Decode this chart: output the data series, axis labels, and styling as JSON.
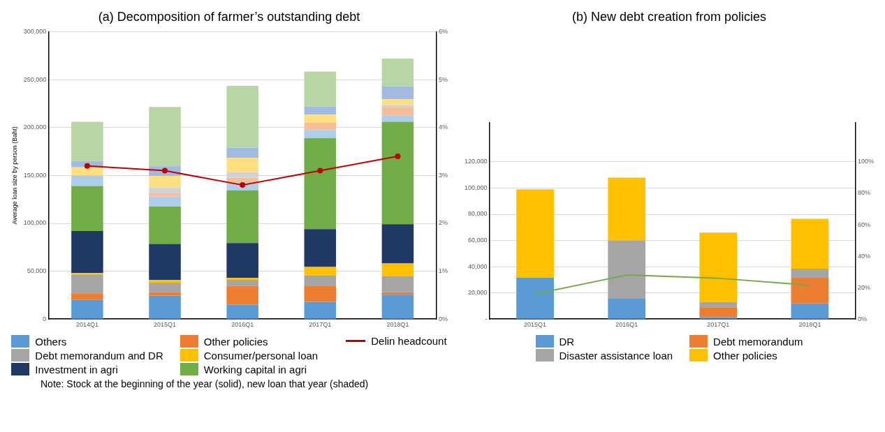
{
  "chart_data": [
    {
      "type": "bar",
      "title": "(a) Decomposition of farmer’s outstanding debt",
      "ylabel": "Average loan size by person (Baht)",
      "categories": [
        "2014Q1",
        "2015Q1",
        "2016Q1",
        "2017Q1",
        "2018Q1"
      ],
      "stacked": true,
      "grid": "y",
      "legend": "bottom",
      "ylim": [
        0,
        300000
      ],
      "yticks": [
        {
          "value": 0,
          "label": "0"
        },
        {
          "value": 50000,
          "label": "50,000"
        },
        {
          "value": 100000,
          "label": "100,000"
        },
        {
          "value": 150000,
          "label": "150,000"
        },
        {
          "value": 200000,
          "label": "200,000"
        },
        {
          "value": 250000,
          "label": "250,000"
        },
        {
          "value": 300000,
          "label": "300,000"
        }
      ],
      "y2lim": [
        0,
        6
      ],
      "y2ticks": [
        {
          "value": 0,
          "label": "0%"
        },
        {
          "value": 1,
          "label": "1%"
        },
        {
          "value": 2,
          "label": "2%"
        },
        {
          "value": 3,
          "label": "3%"
        },
        {
          "value": 4,
          "label": "4%"
        },
        {
          "value": 5,
          "label": "5%"
        },
        {
          "value": 6,
          "label": "6%"
        }
      ],
      "annotations": [
        "Note: Stock at the beginning of the year (solid), new loan that year (shaded)"
      ],
      "series": [
        {
          "name": "Others",
          "color": "#5b9bd5",
          "values": [
            20000,
            24500,
            15000,
            18000,
            25500
          ]
        },
        {
          "name": "Other policies",
          "color": "#ed7d31",
          "values": [
            7000,
            3500,
            19500,
            17000,
            2500
          ]
        },
        {
          "name": "Debt memorandum and DR",
          "color": "#a5a5a5",
          "values": [
            19000,
            10000,
            6500,
            10500,
            17000
          ]
        },
        {
          "name": "Consumer/personal loan",
          "color": "#ffc000",
          "values": [
            2000,
            3000,
            2000,
            9000,
            13000
          ]
        },
        {
          "name": "Investment in agri",
          "color": "#1f3864",
          "values": [
            44000,
            37500,
            36500,
            39500,
            41000
          ]
        },
        {
          "name": "Working capital in agri",
          "color": "#70ad47",
          "values": [
            47000,
            39000,
            55000,
            95000,
            107000
          ]
        },
        {
          "color": "#adcdea",
          "values": [
            11000,
            10500,
            8500,
            8500,
            6500
          ]
        },
        {
          "color": "#f6be98",
          "values": [
            0,
            3500,
            4500,
            7500,
            9000
          ]
        },
        {
          "color": "#d2d2d2",
          "values": [
            0,
            6000,
            6000,
            0,
            2000
          ]
        },
        {
          "color": "#ffe080",
          "values": [
            8500,
            12000,
            15000,
            8500,
            6000
          ]
        },
        {
          "color": "#a2b9e2",
          "values": [
            6500,
            10000,
            10500,
            8500,
            13500
          ]
        },
        {
          "color": "#b8d6a3",
          "values": [
            41000,
            62000,
            64500,
            36500,
            29000
          ]
        },
        {
          "name": "Delin headcount",
          "type": "line",
          "axis": "y2",
          "color": "#c00000",
          "marker": "circle",
          "values": [
            3.2,
            3.1,
            2.8,
            3.1,
            3.4
          ]
        }
      ]
    },
    {
      "type": "bar",
      "title": "(b) New debt creation from policies",
      "categories": [
        "2015Q1",
        "2016Q1",
        "2017Q1",
        "2018Q1"
      ],
      "stacked": true,
      "grid": "y",
      "legend": "bottom",
      "ylim": [
        0,
        150000
      ],
      "yticks": [
        {
          "value": 0,
          "label": "-"
        },
        {
          "value": 20000,
          "label": "20,000"
        },
        {
          "value": 40000,
          "label": "40,000"
        },
        {
          "value": 60000,
          "label": "60,000"
        },
        {
          "value": 80000,
          "label": "80,000"
        },
        {
          "value": 100000,
          "label": "100,000"
        },
        {
          "value": 120000,
          "label": "120,000"
        }
      ],
      "y2lim": [
        0,
        125
      ],
      "y2ticks": [
        {
          "value": 0,
          "label": "0%"
        },
        {
          "value": 20,
          "label": "20%"
        },
        {
          "value": 40,
          "label": "40%"
        },
        {
          "value": 60,
          "label": "60%"
        },
        {
          "value": 80,
          "label": "80%"
        },
        {
          "value": 100,
          "label": "100%"
        }
      ],
      "series": [
        {
          "name": "DR",
          "color": "#5b9bd5",
          "values": [
            31500,
            15500,
            1500,
            12000
          ]
        },
        {
          "name": "Debt memorandum",
          "color": "#ed7d31",
          "values": [
            0,
            0,
            7500,
            20000
          ]
        },
        {
          "name": "Disaster assistance loan",
          "color": "#a5a5a5",
          "values": [
            0,
            44500,
            4000,
            6500
          ]
        },
        {
          "name": "Other policies",
          "color": "#ffc000",
          "values": [
            67500,
            48000,
            53000,
            38000
          ]
        },
        {
          "type": "line",
          "axis": "y2",
          "color": "#70ad47",
          "values": [
            16,
            28,
            26,
            21.5
          ]
        }
      ]
    }
  ]
}
